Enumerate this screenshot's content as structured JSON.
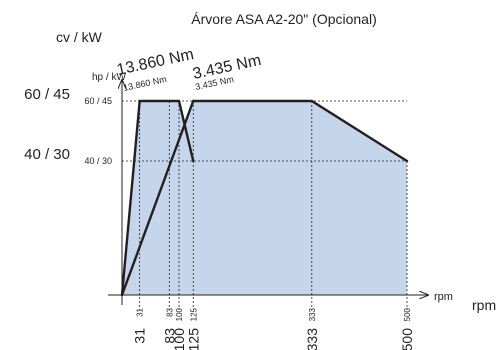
{
  "chart_data": {
    "type": "line",
    "title": "Árvore ASA A2-20\" (Opcional)",
    "x_unit_outer": "rpm",
    "x_unit_inner": "rpm",
    "y_unit_outer": "cv / kW",
    "y_unit_inner": "hp / kW",
    "y_ticks": [
      {
        "value": 40,
        "outer": "40 / 30",
        "inner": "40 / 30"
      },
      {
        "value": 60,
        "outer": "60 / 45",
        "inner": "60 / 45"
      }
    ],
    "x_ticks": [
      {
        "value": 31,
        "outer": "31",
        "inner": "31"
      },
      {
        "value": 83,
        "outer": "83",
        "inner": "83"
      },
      {
        "value": 100,
        "outer": "100",
        "inner": "100"
      },
      {
        "value": 125,
        "outer": "125",
        "inner": "125"
      },
      {
        "value": 333,
        "outer": "333",
        "inner": "333"
      },
      {
        "value": 500,
        "outer": "500",
        "inner": "500"
      }
    ],
    "torque_labels": [
      {
        "outer": "13.860 Nm",
        "inner": "13.860 Nm"
      },
      {
        "outer": "3.435 Nm",
        "inner": "3.435 Nm"
      }
    ],
    "series": [
      {
        "points": [
          [
            0,
            0
          ],
          [
            31,
            60
          ],
          [
            100,
            60
          ],
          [
            125,
            40
          ]
        ]
      },
      {
        "points": [
          [
            0,
            0
          ],
          [
            125,
            60
          ],
          [
            333,
            60
          ],
          [
            500,
            40
          ]
        ]
      }
    ],
    "x_range": [
      0,
      500
    ],
    "y_range": [
      0,
      60
    ],
    "fill_color": "#c5d6ec",
    "line_color": "#231f20"
  }
}
